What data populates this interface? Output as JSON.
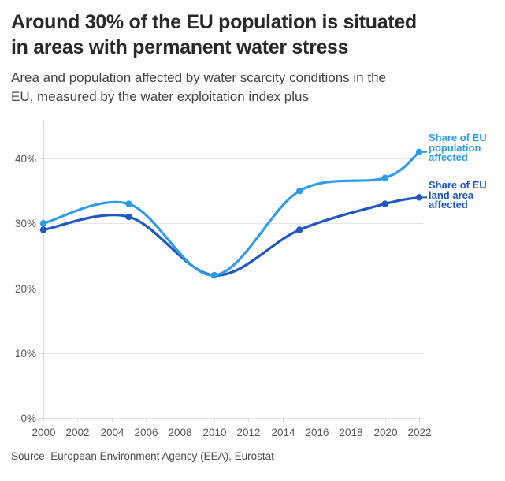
{
  "header": {
    "title": "Around 30% of the EU population is situated\nin areas with permanent water stress",
    "subtitle": "Area and population affected by water scarcity conditions in the\nEU, measured by the water exploitation index plus"
  },
  "source": "Source: European Environment Agency (EEA), Eurostat",
  "colors": {
    "population_line": "#2f9ceb",
    "land_line": "#1f57c4",
    "gridline": "#e5e5e5",
    "axis_line": "#d9d9d9",
    "tick_label": "#585858",
    "title_text": "#282828",
    "subtitle_text": "#434343",
    "source_text": "#4c4c4c"
  },
  "chart_data": {
    "type": "line",
    "title": "Around 30% of the EU population is situated in areas with permanent water stress",
    "subtitle": "Area and population affected by water scarcity conditions in the EU, measured by the water exploitation index plus",
    "x": [
      2000,
      2005,
      2010,
      2015,
      2020,
      2022
    ],
    "series": [
      {
        "name": "Share of EU\npopulation\naffected",
        "values": [
          30,
          33,
          22,
          35,
          37,
          41
        ],
        "color": "#2f9ceb"
      },
      {
        "name": "Share of EU\nland area\naffected",
        "values": [
          29,
          31,
          22,
          29,
          33,
          34
        ],
        "color": "#1f57c4"
      }
    ],
    "x_ticks": [
      2000,
      2002,
      2004,
      2006,
      2008,
      2010,
      2012,
      2014,
      2016,
      2018,
      2020,
      2022
    ],
    "y_ticks": [
      0,
      10,
      20,
      30,
      40
    ],
    "y_tick_suffix": "%",
    "xlim": [
      2000,
      2022
    ],
    "ylim": [
      0,
      46
    ],
    "grid": "horizontal",
    "legend_position": "right-edge-labels",
    "curve": "smooth",
    "source": "Source: European Environment Agency (EEA), Eurostat"
  }
}
